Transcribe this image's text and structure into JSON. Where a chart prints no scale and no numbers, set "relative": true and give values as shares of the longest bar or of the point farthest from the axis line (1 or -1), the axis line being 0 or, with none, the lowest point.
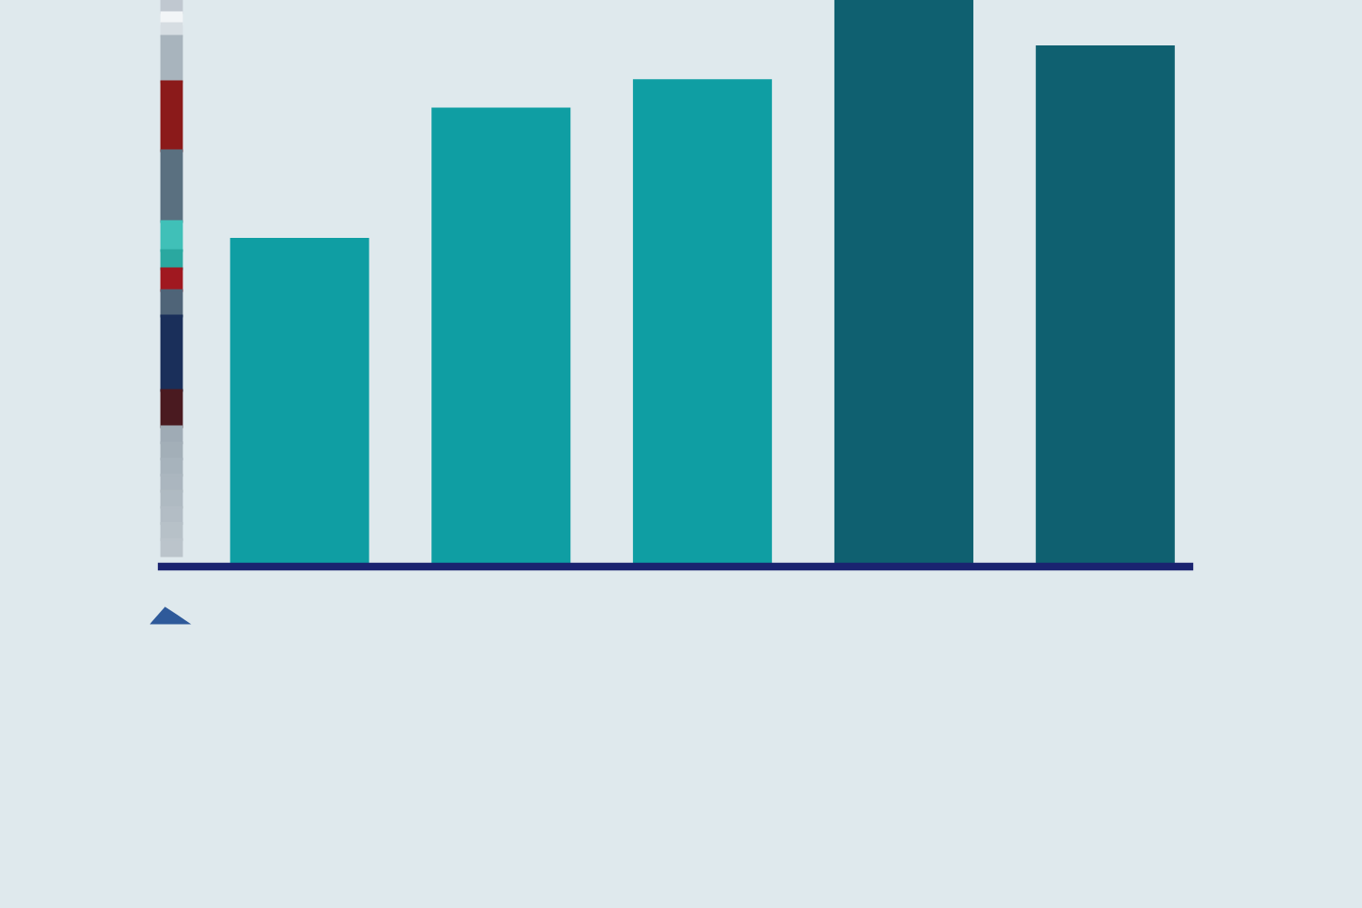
{
  "chart_data": {
    "type": "bar",
    "relative": true,
    "categories": [
      null,
      null,
      null,
      null,
      null
    ],
    "values": [
      0.58,
      0.81,
      0.86,
      1,
      0.92
    ],
    "colors": [
      "#0f9ea3",
      "#0f9ea3",
      "#0f9ea3",
      "#0f6070",
      "#0f6070"
    ]
  }
}
